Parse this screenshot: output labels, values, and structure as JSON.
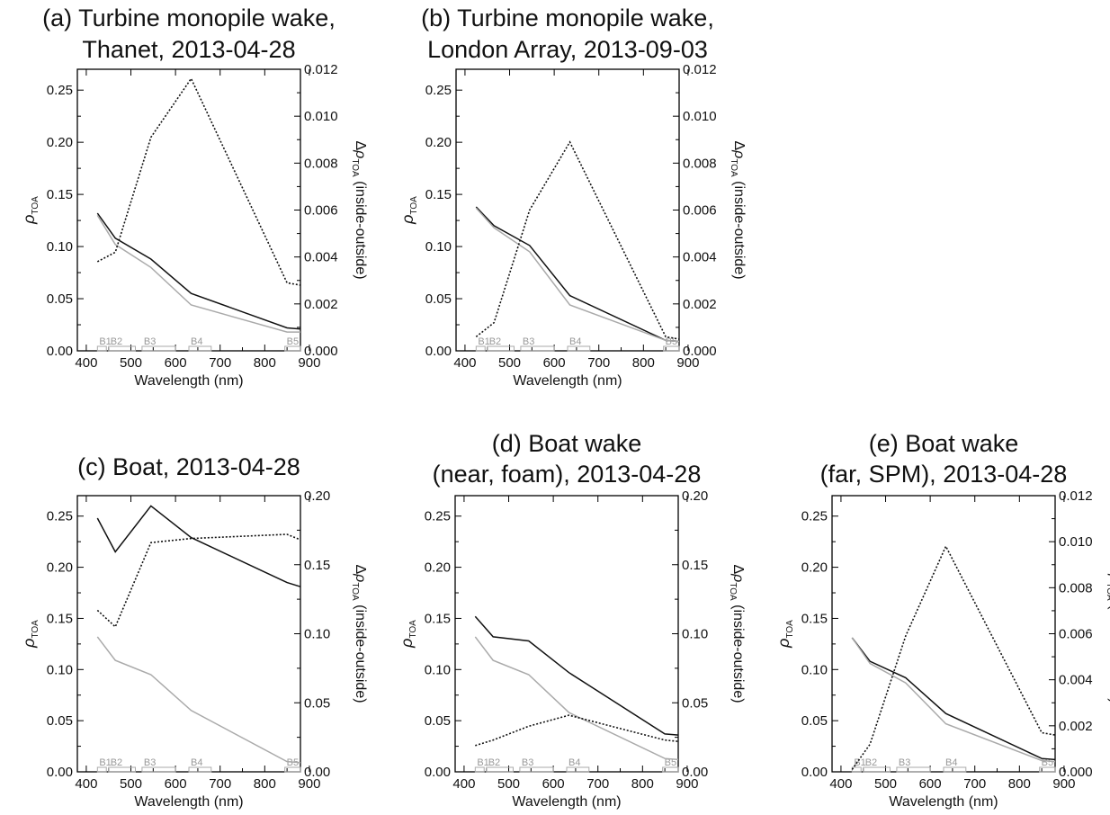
{
  "chart_data": [
    {
      "type": "line",
      "panel": "(a)",
      "title_line1": "Turbine monopile wake,",
      "title_line2": "Thanet, 2013-04-28",
      "xlabel": "Wavelength (nm)",
      "xlim": [
        380,
        880
      ],
      "xticks": [
        400,
        500,
        600,
        700,
        800,
        900
      ],
      "ylim_left": [
        0,
        0.27
      ],
      "yticks_left": [
        0.0,
        0.05,
        0.1,
        0.15,
        0.2,
        0.25
      ],
      "ylim_right": [
        0,
        0.012
      ],
      "yticks_right": [
        0.0,
        0.002,
        0.004,
        0.006,
        0.008,
        0.01,
        0.012
      ],
      "right_decimals": 3,
      "x": [
        425,
        465,
        545,
        635,
        850,
        880
      ],
      "series": [
        {
          "axis": "left",
          "color": "#111111",
          "dash": "",
          "values": [
            0.132,
            0.108,
            0.088,
            0.055,
            0.022,
            0.021
          ]
        },
        {
          "axis": "left",
          "color": "#aaaaaa",
          "dash": "",
          "values": [
            0.13,
            0.102,
            0.08,
            0.044,
            0.018,
            0.018
          ]
        },
        {
          "axis": "right",
          "color": "#111111",
          "dash": "2,2",
          "values": [
            0.0038,
            0.0042,
            0.0091,
            0.0116,
            0.0029,
            0.0028
          ]
        }
      ]
    },
    {
      "type": "line",
      "panel": "(b)",
      "title_line1": "Turbine monopile wake,",
      "title_line2": "London Array, 2013-09-03",
      "xlabel": "Wavelength (nm)",
      "xlim": [
        380,
        880
      ],
      "xticks": [
        400,
        500,
        600,
        700,
        800,
        900
      ],
      "ylim_left": [
        0,
        0.27
      ],
      "yticks_left": [
        0.0,
        0.05,
        0.1,
        0.15,
        0.2,
        0.25
      ],
      "ylim_right": [
        0,
        0.012
      ],
      "yticks_right": [
        0.0,
        0.002,
        0.004,
        0.006,
        0.008,
        0.01,
        0.012
      ],
      "right_decimals": 3,
      "x": [
        425,
        465,
        545,
        635,
        850,
        880
      ],
      "series": [
        {
          "axis": "left",
          "color": "#111111",
          "dash": "",
          "values": [
            0.138,
            0.12,
            0.101,
            0.053,
            0.01,
            0.009
          ]
        },
        {
          "axis": "left",
          "color": "#aaaaaa",
          "dash": "",
          "values": [
            0.137,
            0.118,
            0.095,
            0.044,
            0.01,
            0.009
          ]
        },
        {
          "axis": "right",
          "color": "#111111",
          "dash": "2,2",
          "values": [
            0.0006,
            0.0012,
            0.006,
            0.0089,
            0.0006,
            0.0005
          ]
        }
      ]
    },
    {
      "type": "line",
      "panel": "(c)",
      "title_line1": "",
      "title_line2": "Boat, 2013-04-28",
      "xlabel": "Wavelength (nm)",
      "xlim": [
        380,
        880
      ],
      "xticks": [
        400,
        500,
        600,
        700,
        800,
        900
      ],
      "ylim_left": [
        0,
        0.27
      ],
      "yticks_left": [
        0.0,
        0.05,
        0.1,
        0.15,
        0.2,
        0.25
      ],
      "ylim_right": [
        0,
        0.2
      ],
      "yticks_right": [
        0.0,
        0.05,
        0.1,
        0.15,
        0.2
      ],
      "right_decimals": 2,
      "x": [
        425,
        465,
        545,
        635,
        850,
        880
      ],
      "series": [
        {
          "axis": "left",
          "color": "#111111",
          "dash": "",
          "values": [
            0.248,
            0.215,
            0.26,
            0.229,
            0.185,
            0.181
          ]
        },
        {
          "axis": "left",
          "color": "#aaaaaa",
          "dash": "",
          "values": [
            0.132,
            0.109,
            0.095,
            0.06,
            0.01,
            0.009
          ]
        },
        {
          "axis": "right",
          "color": "#111111",
          "dash": "2,2",
          "values": [
            0.117,
            0.105,
            0.166,
            0.169,
            0.172,
            0.168
          ]
        }
      ]
    },
    {
      "type": "line",
      "panel": "(d)",
      "title_line1": "Boat wake",
      "title_line2": "(near, foam), 2013-04-28",
      "xlabel": "Wavelength (nm)",
      "xlim": [
        380,
        880
      ],
      "xticks": [
        400,
        500,
        600,
        700,
        800,
        900
      ],
      "ylim_left": [
        0,
        0.27
      ],
      "yticks_left": [
        0.0,
        0.05,
        0.1,
        0.15,
        0.2,
        0.25
      ],
      "ylim_right": [
        0,
        0.2
      ],
      "yticks_right": [
        0.0,
        0.05,
        0.1,
        0.15,
        0.2
      ],
      "right_decimals": 2,
      "x": [
        425,
        465,
        545,
        635,
        850,
        880
      ],
      "series": [
        {
          "axis": "left",
          "color": "#111111",
          "dash": "",
          "values": [
            0.152,
            0.132,
            0.128,
            0.097,
            0.037,
            0.036
          ]
        },
        {
          "axis": "left",
          "color": "#aaaaaa",
          "dash": "",
          "values": [
            0.132,
            0.109,
            0.095,
            0.058,
            0.013,
            0.012
          ]
        },
        {
          "axis": "right",
          "color": "#111111",
          "dash": "2,2",
          "values": [
            0.019,
            0.023,
            0.033,
            0.041,
            0.023,
            0.022
          ]
        }
      ]
    },
    {
      "type": "line",
      "panel": "(e)",
      "title_line1": "Boat wake",
      "title_line2": "(far, SPM), 2013-04-28",
      "xlabel": "Wavelength (nm)",
      "xlim": [
        380,
        880
      ],
      "xticks": [
        400,
        500,
        600,
        700,
        800,
        900
      ],
      "ylim_left": [
        0,
        0.27
      ],
      "yticks_left": [
        0.0,
        0.05,
        0.1,
        0.15,
        0.2,
        0.25
      ],
      "ylim_right": [
        0,
        0.012
      ],
      "yticks_right": [
        0.0,
        0.002,
        0.004,
        0.006,
        0.008,
        0.01,
        0.012
      ],
      "right_decimals": 3,
      "x": [
        425,
        465,
        545,
        635,
        850,
        880
      ],
      "series": [
        {
          "axis": "left",
          "color": "#111111",
          "dash": "",
          "values": [
            0.131,
            0.108,
            0.092,
            0.057,
            0.013,
            0.012
          ]
        },
        {
          "axis": "left",
          "color": "#aaaaaa",
          "dash": "",
          "values": [
            0.131,
            0.106,
            0.087,
            0.047,
            0.011,
            0.01
          ]
        },
        {
          "axis": "right",
          "color": "#111111",
          "dash": "2,2",
          "values": [
            0.0001,
            0.0012,
            0.0059,
            0.0098,
            0.0017,
            0.0016
          ]
        }
      ]
    }
  ],
  "bands": [
    {
      "label": "B1",
      "start": 425,
      "end": 445
    },
    {
      "label": "B2",
      "start": 450,
      "end": 510
    },
    {
      "label": "B3",
      "start": 525,
      "end": 600
    },
    {
      "label": "B4",
      "start": 630,
      "end": 680
    },
    {
      "label": "B5",
      "start": 845,
      "end": 885
    }
  ]
}
